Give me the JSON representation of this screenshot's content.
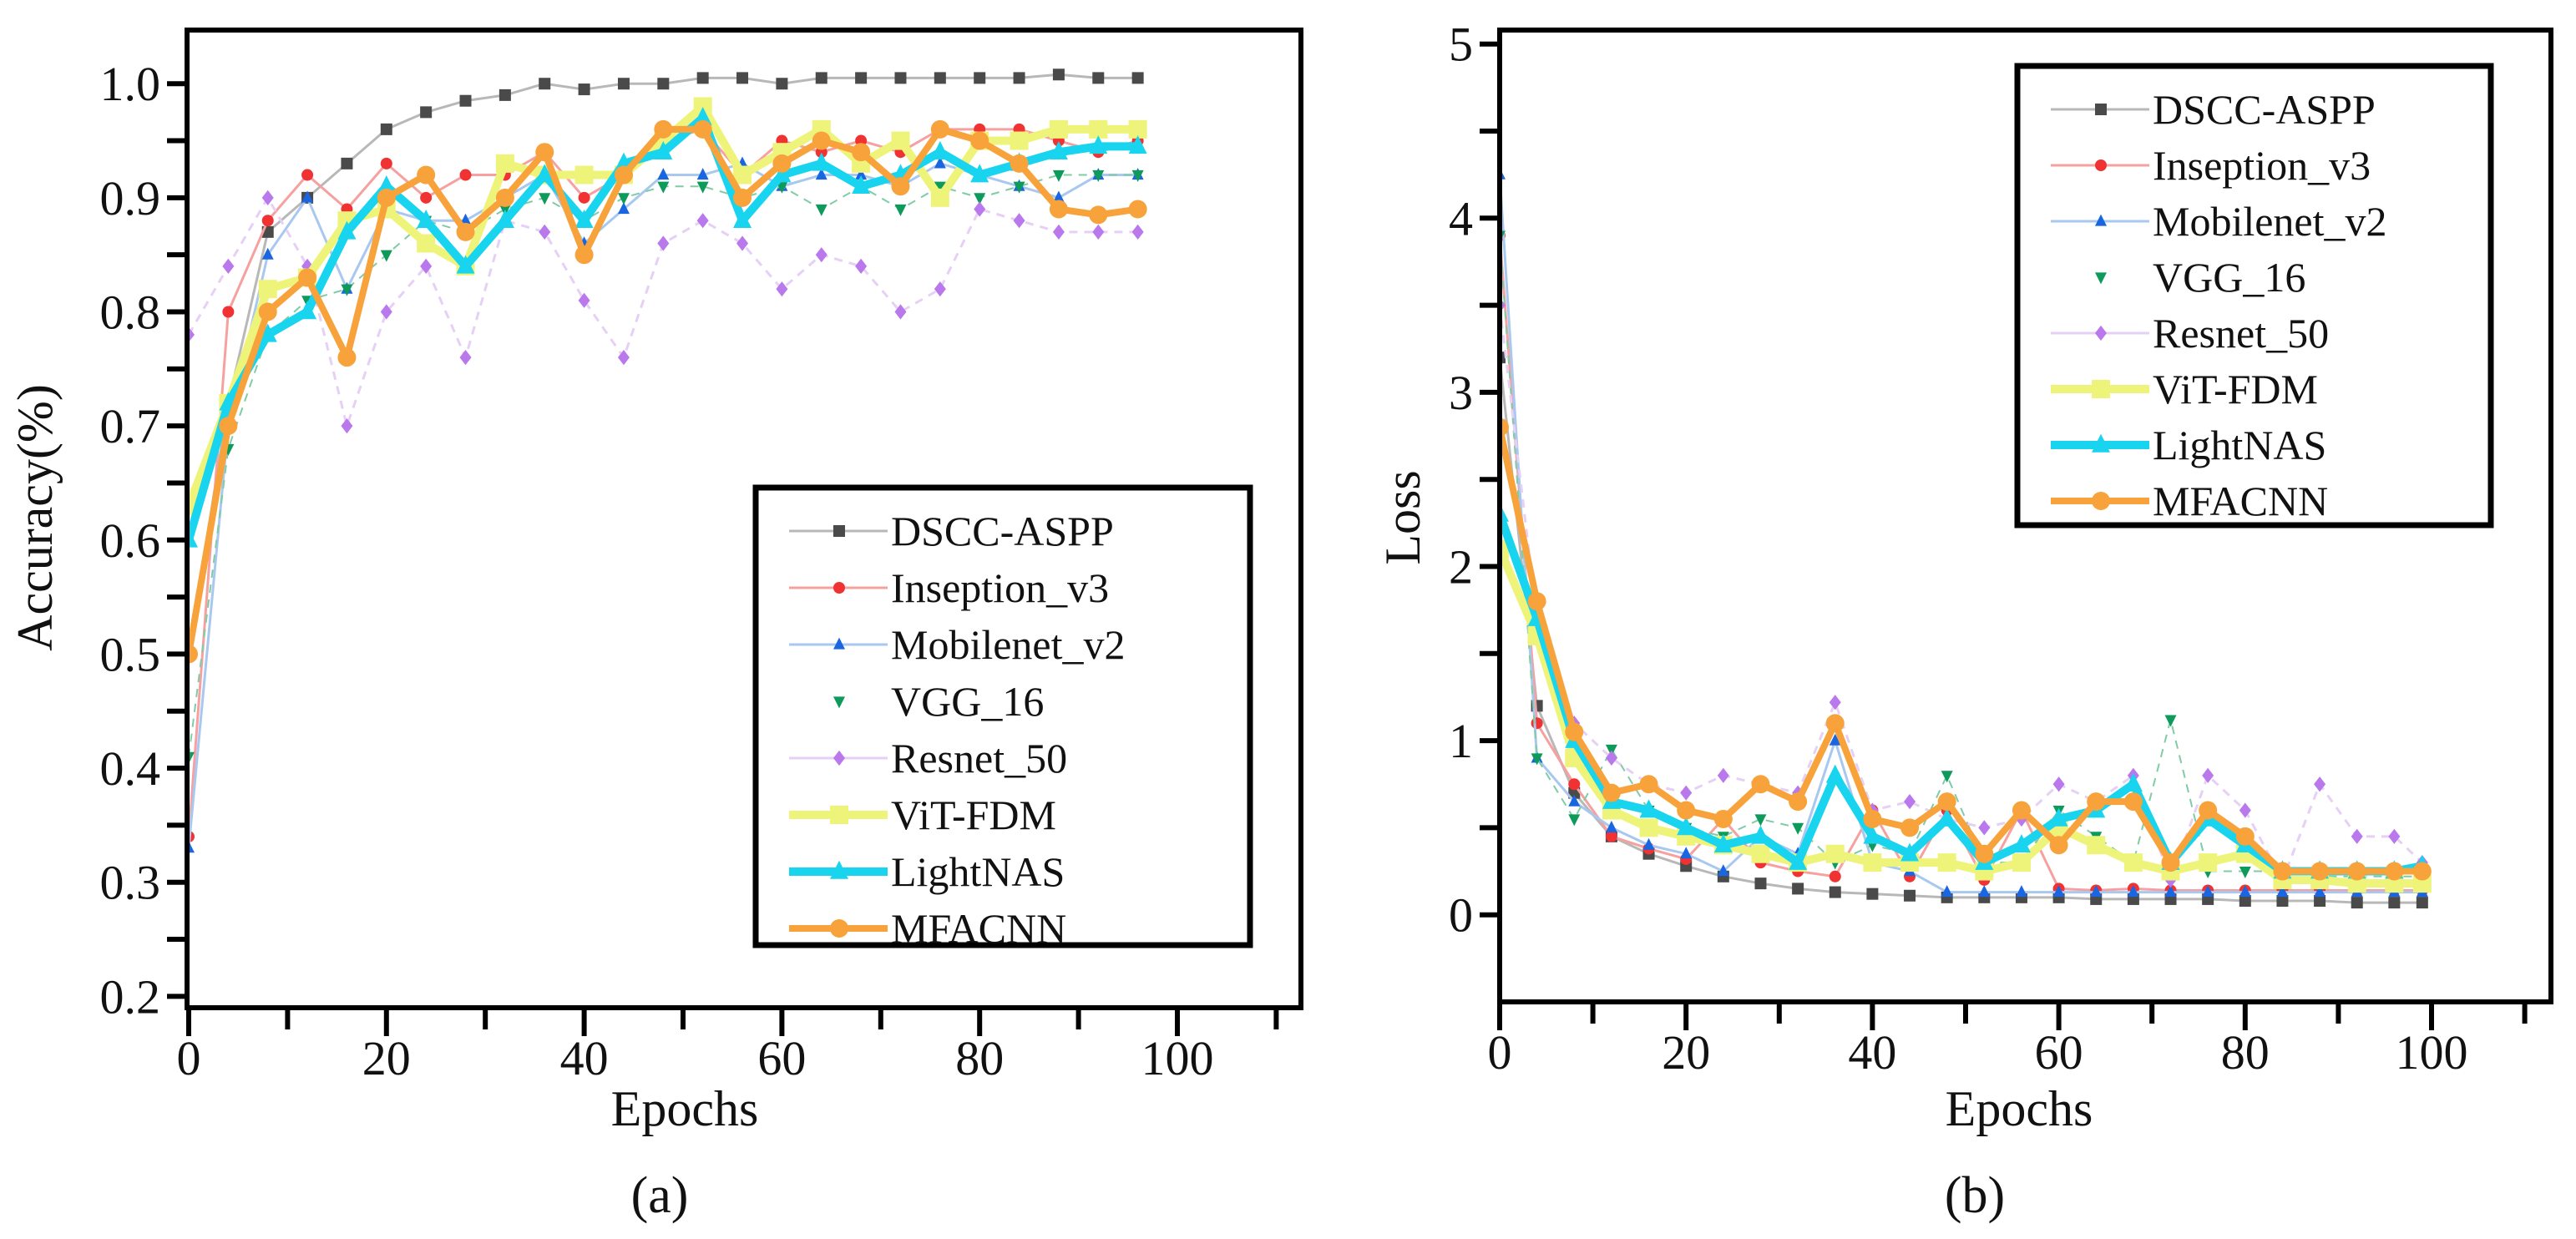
{
  "chart_data": [
    {
      "type": "line",
      "panel_label": "(a)",
      "panel_letter": "a",
      "xlabel": "Epochs",
      "ylabel": "Accuracy(%)",
      "xlim": [
        0,
        115
      ],
      "ylim": [
        0.19,
        1.047
      ],
      "xticks": [
        0,
        20,
        40,
        60,
        80,
        100
      ],
      "yticks": [
        0.2,
        0.3,
        0.4,
        0.5,
        0.6,
        0.7,
        0.8,
        0.9,
        1.0
      ],
      "ytick_labels": [
        "0.2",
        "0.3",
        "0.4",
        "0.5",
        "0.6",
        "0.7",
        "0.8",
        "0.9",
        "1.0"
      ],
      "grid": false,
      "legend_position": "bottom-right",
      "x": [
        0,
        4,
        8,
        12,
        16,
        20,
        24,
        28,
        32,
        36,
        40,
        44,
        48,
        52,
        56,
        60,
        64,
        68,
        72,
        76,
        80,
        84,
        88,
        92,
        96
      ],
      "series": [
        {
          "name": "DSCC-ASPP",
          "values": [
            0.5,
            0.72,
            0.87,
            0.9,
            0.93,
            0.96,
            0.975,
            0.985,
            0.99,
            1.0,
            0.995,
            1.0,
            1.0,
            1.005,
            1.005,
            1.0,
            1.005,
            1.005,
            1.005,
            1.005,
            1.005,
            1.005,
            1.008,
            1.005,
            1.005
          ]
        },
        {
          "name": "Inseption_v3",
          "values": [
            0.34,
            0.8,
            0.88,
            0.92,
            0.89,
            0.93,
            0.9,
            0.92,
            0.92,
            0.94,
            0.9,
            0.92,
            0.95,
            0.96,
            0.92,
            0.95,
            0.94,
            0.95,
            0.94,
            0.96,
            0.96,
            0.96,
            0.95,
            0.94,
            0.95
          ]
        },
        {
          "name": "Mobilenet_v2",
          "values": [
            0.33,
            0.7,
            0.85,
            0.9,
            0.82,
            0.89,
            0.88,
            0.88,
            0.9,
            0.92,
            0.86,
            0.89,
            0.92,
            0.92,
            0.93,
            0.91,
            0.92,
            0.92,
            0.91,
            0.93,
            0.92,
            0.91,
            0.9,
            0.92,
            0.92
          ]
        },
        {
          "name": "VGG_16",
          "values": [
            0.41,
            0.68,
            0.78,
            0.81,
            0.82,
            0.85,
            0.88,
            0.87,
            0.89,
            0.9,
            0.88,
            0.9,
            0.91,
            0.91,
            0.9,
            0.91,
            0.89,
            0.91,
            0.89,
            0.91,
            0.9,
            0.91,
            0.92,
            0.92,
            0.92
          ]
        },
        {
          "name": "Resnet_50",
          "values": [
            0.78,
            0.84,
            0.9,
            0.84,
            0.7,
            0.8,
            0.84,
            0.76,
            0.88,
            0.87,
            0.81,
            0.76,
            0.86,
            0.88,
            0.86,
            0.82,
            0.85,
            0.84,
            0.8,
            0.82,
            0.89,
            0.88,
            0.87,
            0.87,
            0.87
          ]
        },
        {
          "name": "ViT-FDM",
          "values": [
            0.63,
            0.72,
            0.82,
            0.83,
            0.88,
            0.89,
            0.86,
            0.84,
            0.93,
            0.92,
            0.92,
            0.92,
            0.95,
            0.98,
            0.92,
            0.94,
            0.96,
            0.93,
            0.95,
            0.9,
            0.95,
            0.95,
            0.96,
            0.96,
            0.96
          ]
        },
        {
          "name": "LightNAS",
          "values": [
            0.6,
            0.72,
            0.78,
            0.8,
            0.87,
            0.91,
            0.88,
            0.84,
            0.88,
            0.92,
            0.88,
            0.93,
            0.94,
            0.97,
            0.88,
            0.92,
            0.93,
            0.91,
            0.92,
            0.94,
            0.92,
            0.93,
            0.94,
            0.945,
            0.945
          ]
        },
        {
          "name": "MFACNN",
          "values": [
            0.5,
            0.7,
            0.8,
            0.83,
            0.76,
            0.9,
            0.92,
            0.87,
            0.9,
            0.94,
            0.85,
            0.92,
            0.96,
            0.96,
            0.9,
            0.93,
            0.95,
            0.94,
            0.91,
            0.96,
            0.95,
            0.93,
            0.89,
            0.885,
            0.89
          ]
        }
      ]
    },
    {
      "type": "line",
      "panel_label": "(b)",
      "panel_letter": "b",
      "xlabel": "Epochs",
      "ylabel": "Loss",
      "xlim": [
        0,
        112
      ],
      "ylim": [
        -0.5,
        5.08
      ],
      "xticks": [
        0,
        20,
        40,
        60,
        80,
        100
      ],
      "yticks": [
        0,
        1,
        2,
        3,
        4,
        5
      ],
      "ytick_labels": [
        "0",
        "1",
        "2",
        "3",
        "4",
        "5"
      ],
      "grid": false,
      "legend_position": "top-right",
      "x": [
        0,
        4,
        8,
        12,
        16,
        20,
        24,
        28,
        32,
        36,
        40,
        44,
        48,
        52,
        56,
        60,
        64,
        68,
        72,
        76,
        80,
        84,
        88,
        92,
        96,
        99
      ],
      "series": [
        {
          "name": "DSCC-ASPP",
          "values": [
            3.2,
            1.2,
            0.7,
            0.45,
            0.35,
            0.28,
            0.22,
            0.18,
            0.15,
            0.13,
            0.12,
            0.11,
            0.1,
            0.1,
            0.1,
            0.1,
            0.09,
            0.09,
            0.09,
            0.09,
            0.08,
            0.08,
            0.08,
            0.07,
            0.07,
            0.07
          ]
        },
        {
          "name": "Inseption_v3",
          "values": [
            3.9,
            1.1,
            0.75,
            0.45,
            0.38,
            0.32,
            0.55,
            0.3,
            0.25,
            0.22,
            0.6,
            0.22,
            0.6,
            0.2,
            0.6,
            0.15,
            0.14,
            0.15,
            0.14,
            0.14,
            0.14,
            0.14,
            0.14,
            0.14,
            0.14,
            0.14
          ]
        },
        {
          "name": "Mobilenet_v2",
          "values": [
            4.25,
            0.9,
            0.65,
            0.5,
            0.4,
            0.35,
            0.25,
            0.45,
            0.35,
            1.0,
            0.3,
            0.25,
            0.13,
            0.13,
            0.13,
            0.13,
            0.13,
            0.13,
            0.13,
            0.13,
            0.13,
            0.13,
            0.13,
            0.13,
            0.13,
            0.13
          ]
        },
        {
          "name": "VGG_16",
          "values": [
            3.9,
            0.9,
            0.55,
            0.95,
            0.6,
            0.5,
            0.45,
            0.55,
            0.5,
            0.3,
            0.4,
            0.35,
            0.8,
            0.3,
            0.3,
            0.6,
            0.45,
            0.3,
            1.12,
            0.25,
            0.25,
            0.25,
            0.22,
            0.22,
            0.22,
            0.22
          ]
        },
        {
          "name": "Resnet_50",
          "values": [
            3.5,
            1.7,
            1.1,
            0.9,
            0.75,
            0.7,
            0.8,
            0.75,
            0.7,
            1.22,
            0.6,
            0.65,
            0.55,
            0.5,
            0.55,
            0.75,
            0.65,
            0.8,
            0.2,
            0.8,
            0.6,
            0.2,
            0.75,
            0.45,
            0.45,
            0.3
          ]
        },
        {
          "name": "ViT-FDM",
          "values": [
            2.1,
            1.6,
            0.9,
            0.6,
            0.5,
            0.45,
            0.4,
            0.35,
            0.3,
            0.35,
            0.3,
            0.3,
            0.3,
            0.25,
            0.3,
            0.5,
            0.4,
            0.3,
            0.25,
            0.3,
            0.35,
            0.2,
            0.2,
            0.18,
            0.18,
            0.18
          ]
        },
        {
          "name": "LightNAS",
          "values": [
            2.3,
            1.7,
            1.0,
            0.65,
            0.6,
            0.5,
            0.4,
            0.45,
            0.3,
            0.8,
            0.45,
            0.35,
            0.55,
            0.3,
            0.4,
            0.55,
            0.6,
            0.75,
            0.3,
            0.55,
            0.4,
            0.25,
            0.25,
            0.25,
            0.25,
            0.28
          ]
        },
        {
          "name": "MFACNN",
          "values": [
            2.8,
            1.8,
            1.05,
            0.7,
            0.75,
            0.6,
            0.55,
            0.75,
            0.65,
            1.1,
            0.55,
            0.5,
            0.65,
            0.35,
            0.6,
            0.4,
            0.65,
            0.65,
            0.3,
            0.6,
            0.45,
            0.25,
            0.25,
            0.25,
            0.25,
            0.25
          ]
        }
      ]
    }
  ],
  "series_styles": [
    {
      "line": "#b8b8b8",
      "marker": "#4a4a4a",
      "shape": "square",
      "width": 3,
      "dash": ""
    },
    {
      "line": "#f7a0a0",
      "marker": "#f03232",
      "shape": "circle",
      "width": 3,
      "dash": ""
    },
    {
      "line": "#a8c8f0",
      "marker": "#1a66e0",
      "shape": "triangle-up",
      "width": 3,
      "dash": ""
    },
    {
      "line": "#7fcca6",
      "marker": "#0e9a5a",
      "shape": "triangle-down",
      "width": 2,
      "dash": "10 8"
    },
    {
      "line": "#e6d0f6",
      "marker": "#b978ec",
      "shape": "diamond",
      "width": 3,
      "dash": "10 8"
    },
    {
      "line": "#eef47a",
      "marker": "#eef47a",
      "shape": "square",
      "width": 10,
      "dash": ""
    },
    {
      "line": "#18d4ee",
      "marker": "#18d4ee",
      "shape": "triangle-up",
      "width": 10,
      "dash": ""
    },
    {
      "line": "#f7a23a",
      "marker": "#f7a23a",
      "shape": "circle",
      "width": 8,
      "dash": ""
    }
  ]
}
